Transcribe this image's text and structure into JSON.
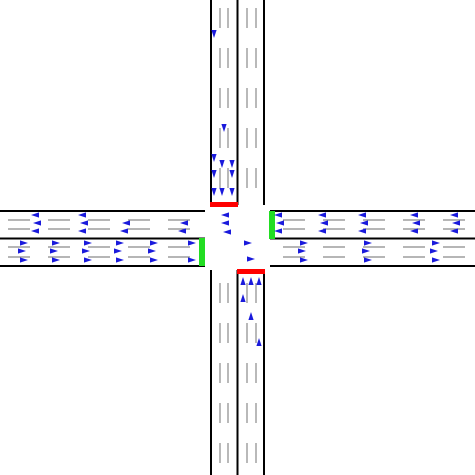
{
  "colors": {
    "background": "#ffffff",
    "road": "#ffffff",
    "edge": "#000000",
    "median": "#000000",
    "lane_dash": "#8a8a8a",
    "vehicle": "#1a1adc",
    "signal_red": "#ff0000",
    "signal_green": "#22dd22"
  },
  "signals": {
    "north_approach": "red",
    "south_approach": "red",
    "east_approach": "green",
    "west_approach": "green"
  },
  "vehicle_icon": "triangle-arrow",
  "queued_vehicles": {
    "north_approach_southbound": 12,
    "south_approach_northbound": 6,
    "east_approach_westbound": 28,
    "west_approach_eastbound": 30
  }
}
